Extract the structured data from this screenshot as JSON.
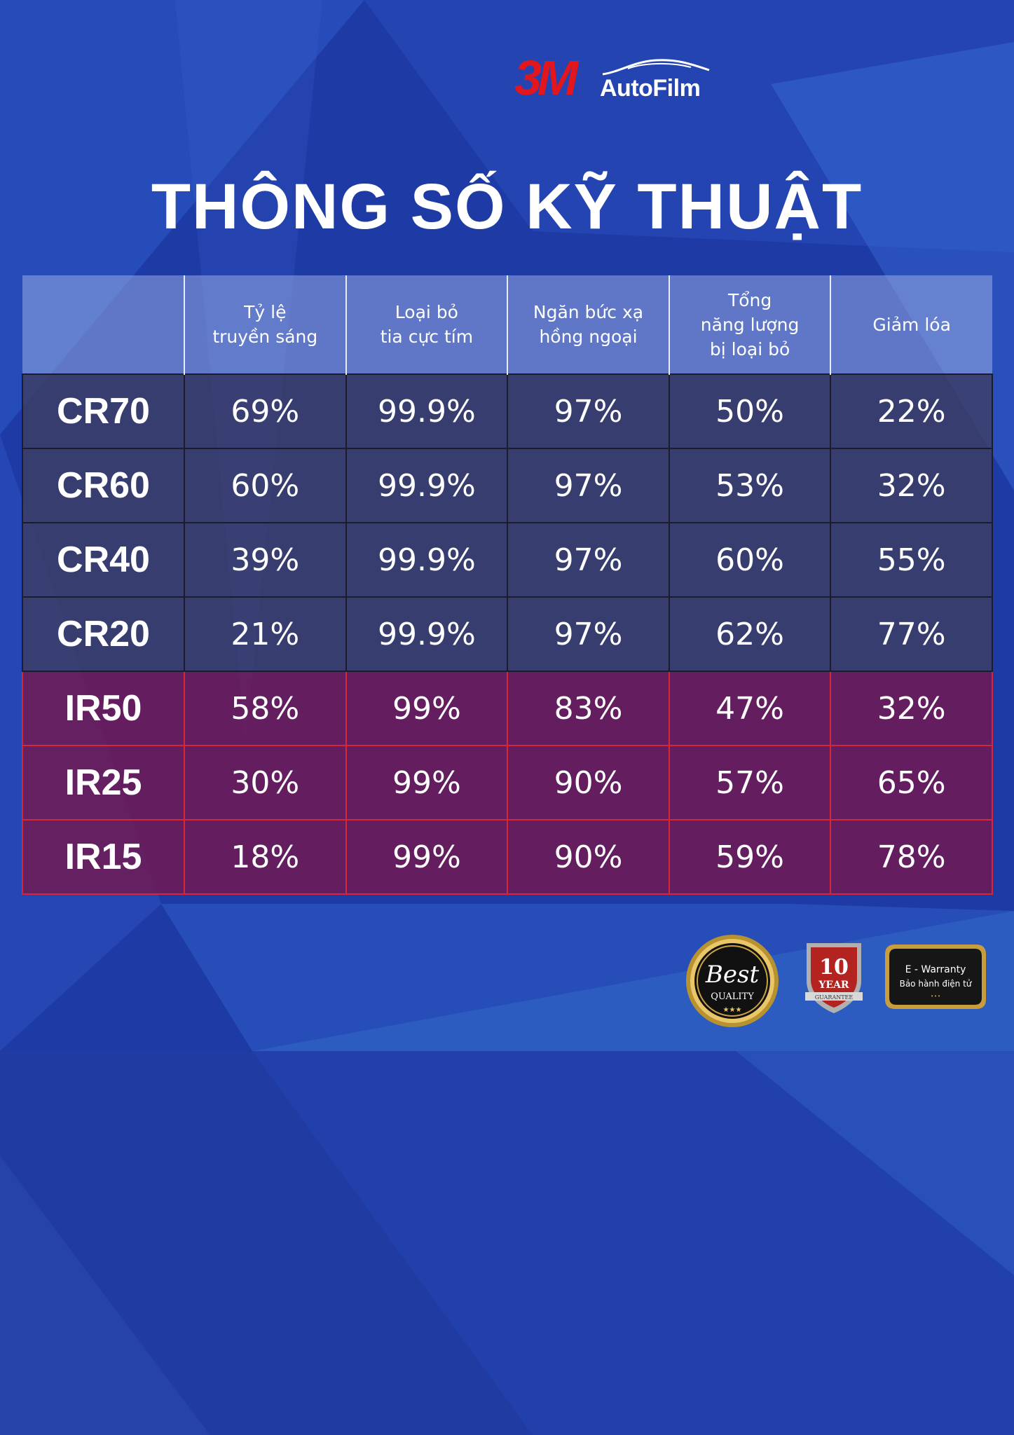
{
  "colors": {
    "background": "#1f3aa6",
    "cr_row": "#3e3e64",
    "ir_row": "#741850",
    "ir_border": "#d72638",
    "logo_red": "#e2161d"
  },
  "brand": {
    "logo_3m": "3M",
    "logo_autofilm": "AutoFilm"
  },
  "page": {
    "title": "THÔNG SỐ KỸ THUẬT"
  },
  "table": {
    "headers": [
      "",
      "Tỷ lệ\ntruyền sáng",
      "Loại bỏ\ntia cực tím",
      "Ngăn bức xạ\nhồng ngoại",
      "Tổng\nnăng lượng\nbị loại bỏ",
      "Giảm lóa"
    ],
    "rows": [
      {
        "group": "cr",
        "cells": [
          "CR70",
          "69%",
          "99.9%",
          "97%",
          "50%",
          "22%"
        ]
      },
      {
        "group": "cr",
        "cells": [
          "CR60",
          "60%",
          "99.9%",
          "97%",
          "53%",
          "32%"
        ]
      },
      {
        "group": "cr",
        "cells": [
          "CR40",
          "39%",
          "99.9%",
          "97%",
          "60%",
          "55%"
        ]
      },
      {
        "group": "cr",
        "cells": [
          "CR20",
          "21%",
          "99.9%",
          "97%",
          "62%",
          "77%"
        ]
      },
      {
        "group": "ir",
        "cells": [
          "IR50",
          "58%",
          "99%",
          "83%",
          "47%",
          "32%"
        ]
      },
      {
        "group": "ir",
        "cells": [
          "IR25",
          "30%",
          "99%",
          "90%",
          "57%",
          "65%"
        ]
      },
      {
        "group": "ir",
        "cells": [
          "IR15",
          "18%",
          "99%",
          "90%",
          "59%",
          "78%"
        ]
      }
    ]
  },
  "badges": {
    "best_quality": {
      "line1": "Best",
      "line2": "QUALITY",
      "icon": "best-quality-seal-icon"
    },
    "ten_year": {
      "number": "10",
      "word": "YEAR",
      "sub": "GUARANTEE",
      "icon": "shield-badge-icon"
    },
    "e_warranty": {
      "line1": "E - Warranty",
      "line2": "Bảo hành điện tử",
      "icon": "warranty-plaque-icon"
    }
  }
}
